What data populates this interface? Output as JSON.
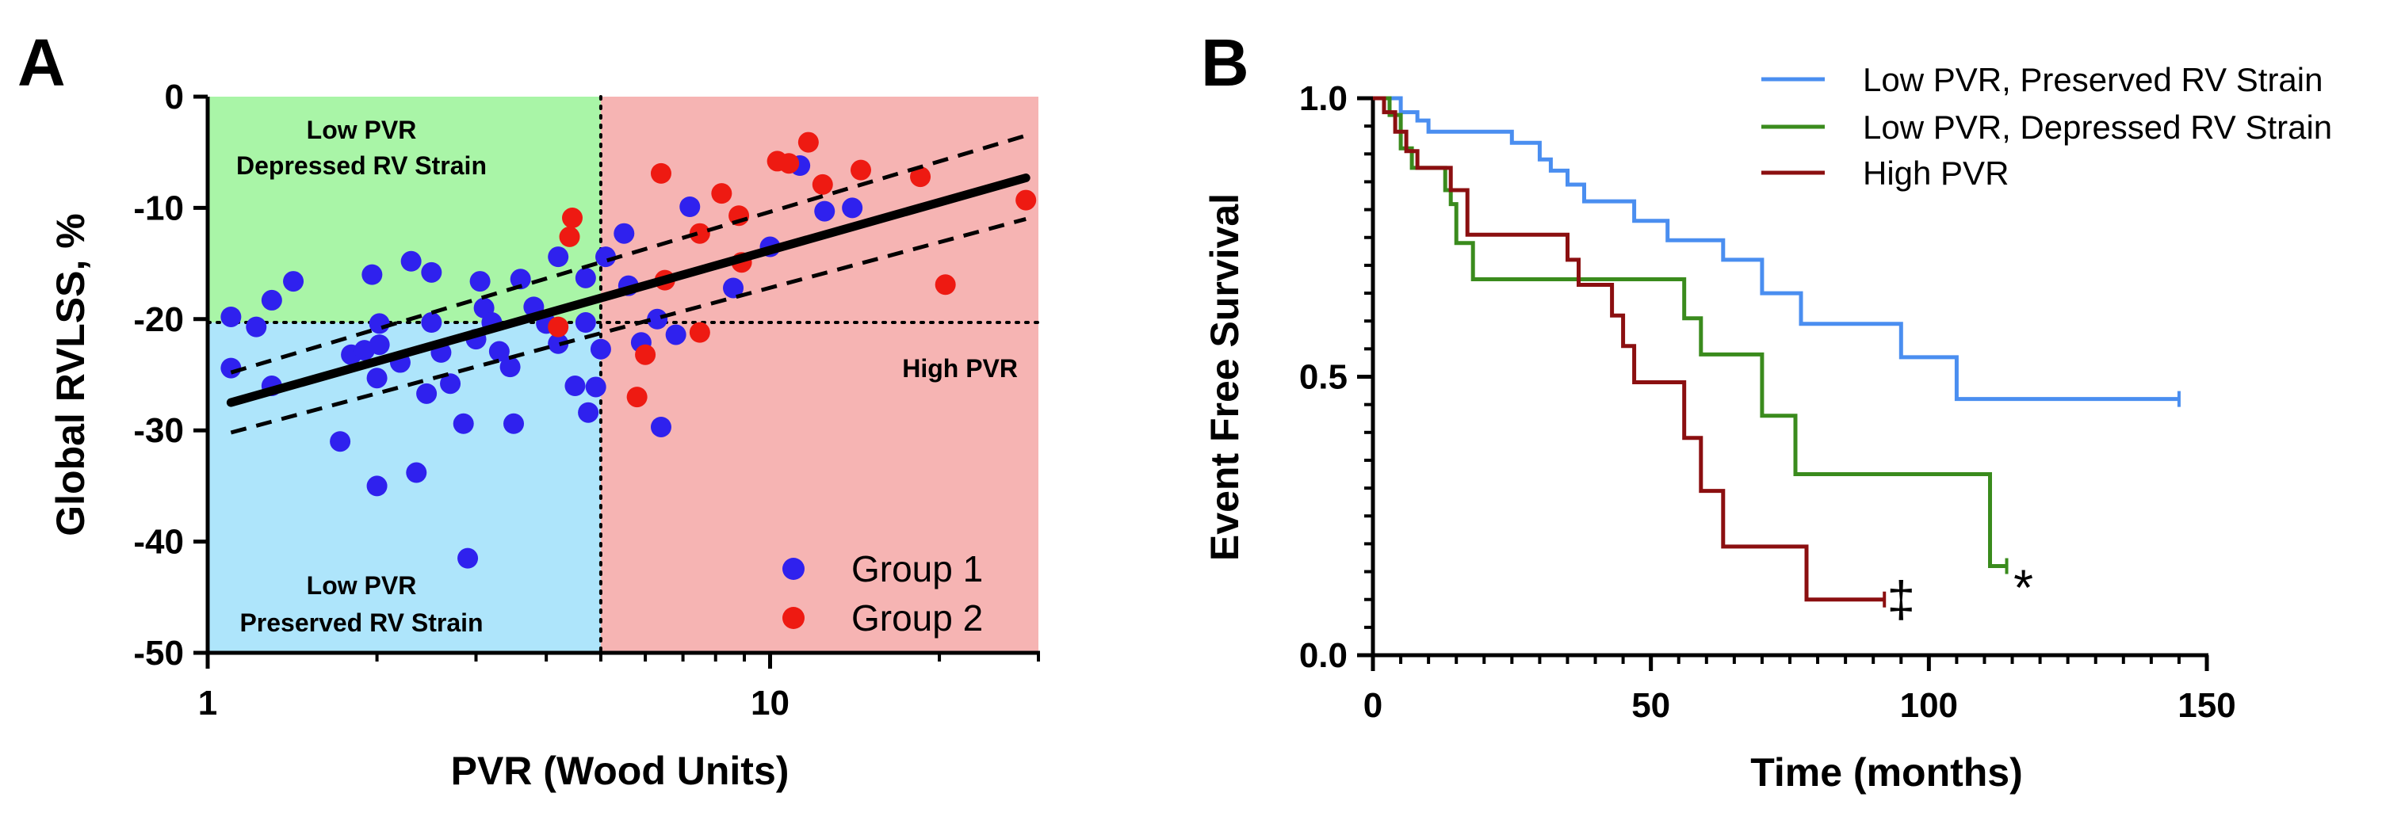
{
  "panels": {
    "a": "A",
    "b": "B"
  },
  "colors": {
    "quad_green": "#a9f5a7",
    "quad_blue": "#aee5fb",
    "quad_red": "#f6b4b3",
    "group1": "#2f21ee",
    "group2": "#ee1a12",
    "low_pvr_preserved": "#4a8ef0",
    "low_pvr_depressed": "#3a8b1d",
    "high_pvr": "#8b0f10"
  },
  "chart_data": [
    {
      "type": "scatter",
      "id": "panel-a",
      "xlabel": "PVR (Wood Units)",
      "ylabel": "Global RVLSS, %",
      "x_scale": "log",
      "xlim": [
        1,
        30
      ],
      "ylim": [
        -50,
        0
      ],
      "x_ticks": [
        1,
        10
      ],
      "y_ticks": [
        0,
        -10,
        -20,
        -30,
        -40,
        -50
      ],
      "x_cutoff": 5,
      "y_cutoff": -20.3,
      "quadrant_labels": {
        "top_left": [
          "Low PVR",
          "Depressed RV Strain"
        ],
        "bottom_left": [
          "Low PVR",
          "Preserved RV Strain"
        ],
        "right": [
          "High PVR"
        ]
      },
      "regression": {
        "line": [
          [
            1.1,
            -27.5
          ],
          [
            28.5,
            -7.3
          ]
        ],
        "ci_upper": [
          [
            1.1,
            -24.8
          ],
          [
            28.5,
            -3.5
          ]
        ],
        "ci_lower": [
          [
            1.1,
            -30.2
          ],
          [
            28.5,
            -11.0
          ]
        ]
      },
      "legend": [
        "Group 1",
        "Group 2"
      ],
      "series": [
        {
          "name": "Group 1",
          "points": [
            [
              1.1,
              -19.8
            ],
            [
              1.1,
              -24.4
            ],
            [
              1.22,
              -20.7
            ],
            [
              1.3,
              -18.3
            ],
            [
              1.3,
              -26.0
            ],
            [
              1.42,
              -16.6
            ],
            [
              1.72,
              -31.0
            ],
            [
              1.8,
              -23.2
            ],
            [
              1.9,
              -22.8
            ],
            [
              1.96,
              -16.0
            ],
            [
              2.0,
              -35.0
            ],
            [
              2.0,
              -25.3
            ],
            [
              2.02,
              -20.4
            ],
            [
              2.02,
              -22.3
            ],
            [
              2.2,
              -23.9
            ],
            [
              2.3,
              -14.8
            ],
            [
              2.35,
              -33.8
            ],
            [
              2.45,
              -26.7
            ],
            [
              2.5,
              -15.8
            ],
            [
              2.5,
              -20.3
            ],
            [
              2.6,
              -23.0
            ],
            [
              2.7,
              -25.8
            ],
            [
              2.85,
              -29.4
            ],
            [
              2.9,
              -41.5
            ],
            [
              3.0,
              -21.8
            ],
            [
              3.05,
              -16.6
            ],
            [
              3.1,
              -19.0
            ],
            [
              3.2,
              -20.3
            ],
            [
              3.3,
              -22.9
            ],
            [
              3.45,
              -24.3
            ],
            [
              3.5,
              -29.4
            ],
            [
              3.6,
              -16.4
            ],
            [
              3.8,
              -18.9
            ],
            [
              4.0,
              -20.4
            ],
            [
              4.2,
              -14.4
            ],
            [
              4.2,
              -22.2
            ],
            [
              4.5,
              -26.0
            ],
            [
              4.7,
              -16.3
            ],
            [
              4.7,
              -20.3
            ],
            [
              4.75,
              -28.4
            ],
            [
              4.9,
              -26.1
            ],
            [
              5.0,
              -22.7
            ],
            [
              5.1,
              -14.4
            ],
            [
              5.5,
              -12.3
            ],
            [
              5.6,
              -17.0
            ],
            [
              5.9,
              -22.1
            ],
            [
              6.3,
              -20.0
            ],
            [
              6.4,
              -29.7
            ],
            [
              6.8,
              -21.4
            ],
            [
              7.2,
              -9.9
            ],
            [
              8.6,
              -17.2
            ],
            [
              10.0,
              -13.5
            ],
            [
              11.3,
              -6.2
            ],
            [
              12.5,
              -10.3
            ],
            [
              14.0,
              -10.0
            ]
          ]
        },
        {
          "name": "Group 2",
          "points": [
            [
              4.2,
              -20.7
            ],
            [
              4.4,
              -12.6
            ],
            [
              4.45,
              -10.9
            ],
            [
              5.8,
              -27.0
            ],
            [
              6.0,
              -23.2
            ],
            [
              6.4,
              -6.9
            ],
            [
              6.5,
              -16.5
            ],
            [
              7.5,
              -21.2
            ],
            [
              7.5,
              -12.3
            ],
            [
              8.2,
              -8.7
            ],
            [
              8.8,
              -10.7
            ],
            [
              8.9,
              -14.9
            ],
            [
              10.3,
              -5.8
            ],
            [
              10.8,
              -6.0
            ],
            [
              11.7,
              -4.1
            ],
            [
              12.4,
              -7.9
            ],
            [
              14.5,
              -6.6
            ],
            [
              18.5,
              -7.2
            ],
            [
              20.5,
              -16.9
            ],
            [
              28.5,
              -9.3
            ]
          ]
        }
      ]
    },
    {
      "type": "line",
      "id": "panel-b",
      "step": true,
      "xlabel": "Time (months)",
      "ylabel": "Event Free Survival",
      "xlim": [
        0,
        150
      ],
      "ylim": [
        0,
        1.0
      ],
      "x_ticks": [
        0,
        50,
        100,
        150
      ],
      "y_ticks": [
        0.0,
        0.5,
        1.0
      ],
      "y_tick_labels": [
        "0.0",
        "0.5",
        "1.0"
      ],
      "x_minor_step": 5,
      "y_minor_step": 0.05,
      "series": [
        {
          "name": "Low PVR, Preserved RV Strain",
          "points": [
            [
              0,
              1.0
            ],
            [
              5,
              1.0
            ],
            [
              5,
              0.975
            ],
            [
              8,
              0.975
            ],
            [
              8,
              0.96
            ],
            [
              10,
              0.96
            ],
            [
              10,
              0.94
            ],
            [
              25,
              0.94
            ],
            [
              25,
              0.92
            ],
            [
              30,
              0.92
            ],
            [
              30,
              0.89
            ],
            [
              32,
              0.89
            ],
            [
              32,
              0.87
            ],
            [
              35,
              0.87
            ],
            [
              35,
              0.845
            ],
            [
              38,
              0.845
            ],
            [
              38,
              0.815
            ],
            [
              47,
              0.815
            ],
            [
              47,
              0.78
            ],
            [
              53,
              0.78
            ],
            [
              53,
              0.745
            ],
            [
              63,
              0.745
            ],
            [
              63,
              0.71
            ],
            [
              70,
              0.71
            ],
            [
              70,
              0.65
            ],
            [
              77,
              0.65
            ],
            [
              77,
              0.595
            ],
            [
              95,
              0.595
            ],
            [
              95,
              0.535
            ],
            [
              105,
              0.535
            ],
            [
              105,
              0.46
            ],
            [
              145,
              0.46
            ]
          ]
        },
        {
          "name": "Low PVR, Depressed RV Strain",
          "points": [
            [
              0,
              1.0
            ],
            [
              3,
              1.0
            ],
            [
              3,
              0.97
            ],
            [
              5,
              0.97
            ],
            [
              5,
              0.91
            ],
            [
              7,
              0.91
            ],
            [
              7,
              0.875
            ],
            [
              13,
              0.875
            ],
            [
              13,
              0.835
            ],
            [
              14,
              0.835
            ],
            [
              14,
              0.81
            ],
            [
              15,
              0.81
            ],
            [
              15,
              0.74
            ],
            [
              18,
              0.74
            ],
            [
              18,
              0.675
            ],
            [
              56,
              0.675
            ],
            [
              56,
              0.605
            ],
            [
              59,
              0.605
            ],
            [
              59,
              0.54
            ],
            [
              70,
              0.54
            ],
            [
              70,
              0.43
            ],
            [
              76,
              0.43
            ],
            [
              76,
              0.325
            ],
            [
              111,
              0.325
            ],
            [
              111,
              0.16
            ],
            [
              114,
              0.16
            ]
          ]
        },
        {
          "name": "High PVR",
          "points": [
            [
              0,
              1.0
            ],
            [
              2,
              1.0
            ],
            [
              2,
              0.975
            ],
            [
              4,
              0.975
            ],
            [
              4,
              0.94
            ],
            [
              6,
              0.94
            ],
            [
              6,
              0.905
            ],
            [
              8,
              0.905
            ],
            [
              8,
              0.875
            ],
            [
              14,
              0.875
            ],
            [
              14,
              0.835
            ],
            [
              17,
              0.835
            ],
            [
              17,
              0.755
            ],
            [
              35,
              0.755
            ],
            [
              35,
              0.71
            ],
            [
              37,
              0.71
            ],
            [
              37,
              0.665
            ],
            [
              43,
              0.665
            ],
            [
              43,
              0.61
            ],
            [
              45,
              0.61
            ],
            [
              45,
              0.555
            ],
            [
              47,
              0.555
            ],
            [
              47,
              0.49
            ],
            [
              56,
              0.49
            ],
            [
              56,
              0.39
            ],
            [
              59,
              0.39
            ],
            [
              59,
              0.295
            ],
            [
              63,
              0.295
            ],
            [
              63,
              0.195
            ],
            [
              78,
              0.195
            ],
            [
              78,
              0.1
            ],
            [
              92,
              0.1
            ]
          ]
        }
      ],
      "annotations": [
        {
          "text": "*",
          "x": 117,
          "y": 0.15,
          "series": "Low PVR, Depressed RV Strain"
        },
        {
          "text": "‡",
          "x": 95,
          "y": 0.1,
          "series": "High PVR"
        }
      ]
    }
  ]
}
